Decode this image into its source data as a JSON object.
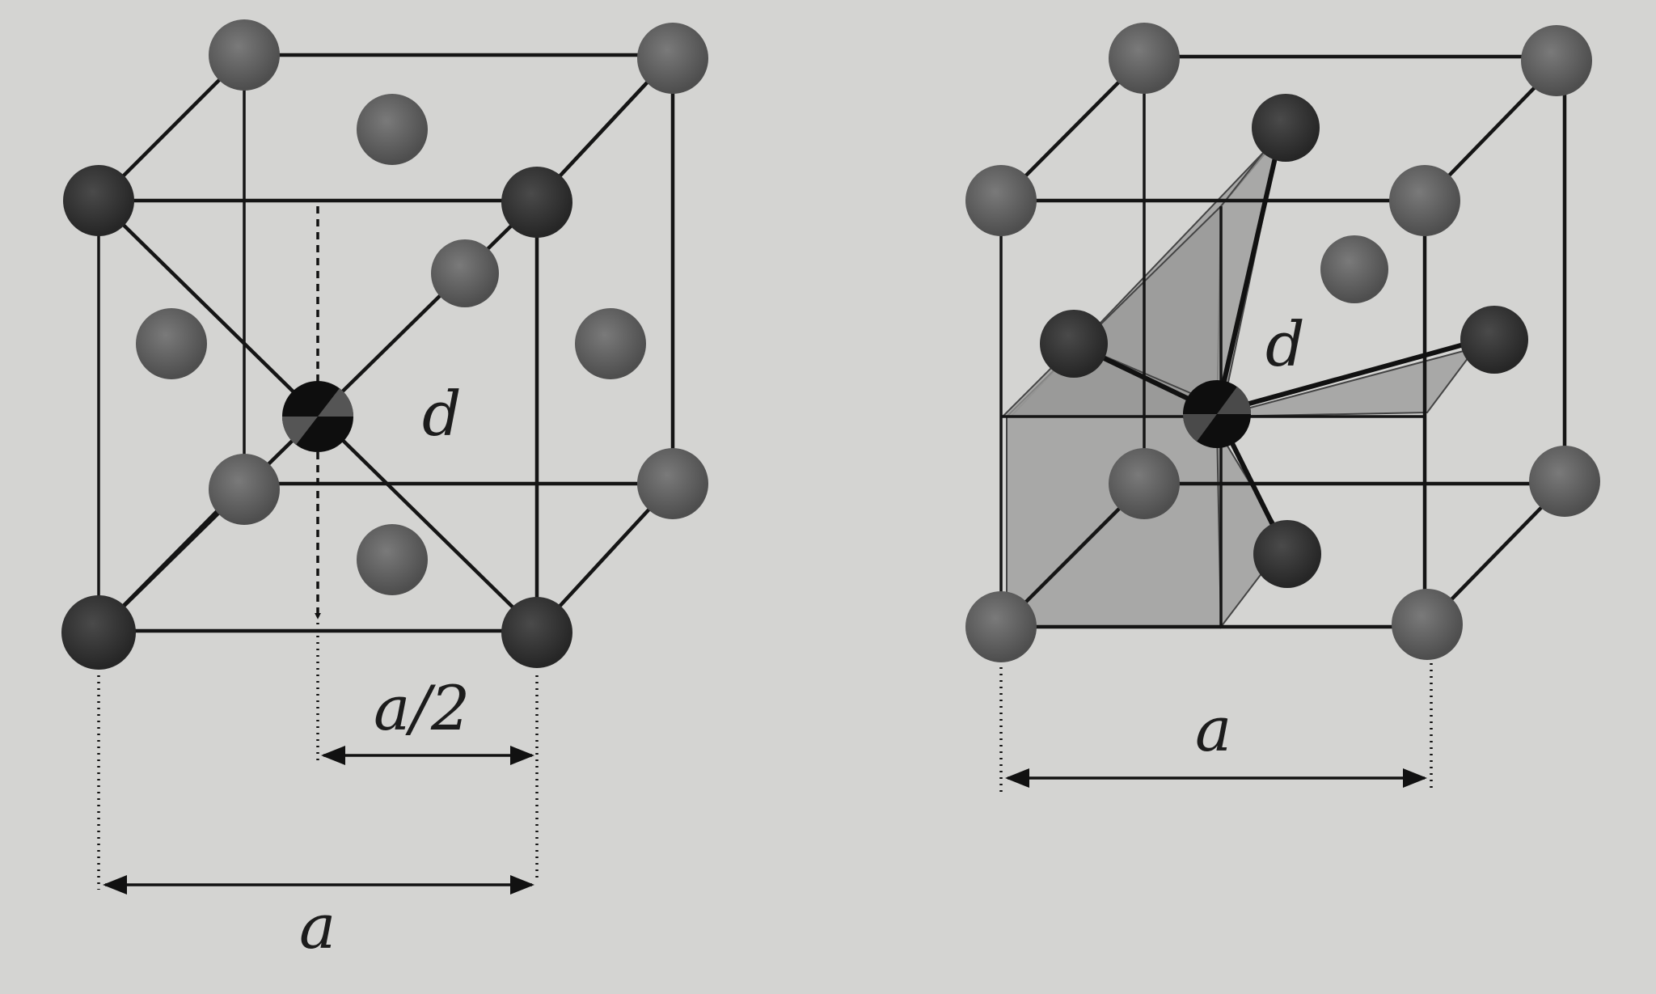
{
  "figure": {
    "left_panel": {
      "labels": {
        "distance": "d",
        "half_edge": "a/2",
        "edge": "a"
      }
    },
    "right_panel": {
      "labels": {
        "distance": "d",
        "edge": "a"
      }
    }
  },
  "colors": {
    "background": "#d4d4d2",
    "line": "#151515",
    "atom_dark": "#2a2a2a",
    "atom_gray": "#5e5e5e",
    "plane_fill": "#9a9a98"
  }
}
